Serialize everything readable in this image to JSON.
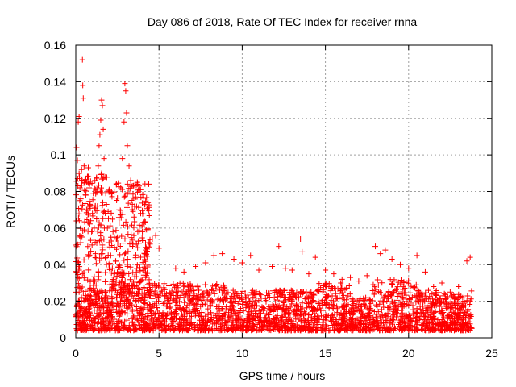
{
  "chart_data": {
    "type": "scatter",
    "title": "Day 086 of 2018, Rate Of TEC Index for receiver rnna",
    "xlabel": "GPS time / hours",
    "ylabel": "ROTI / TECUs",
    "xlim": [
      0,
      25
    ],
    "ylim": [
      0,
      0.16
    ],
    "x_ticks": [
      "0",
      "5",
      "10",
      "15",
      "20",
      "25"
    ],
    "y_ticks": [
      "0",
      "0.02",
      "0.04",
      "0.06",
      "0.08",
      "0.1",
      "0.12",
      "0.14",
      "0.16"
    ],
    "grid": true,
    "marker": "+",
    "series": [
      {
        "name": "ROTI",
        "color": "#ff0000",
        "points": [
          [
            0.05,
            0.104
          ],
          [
            0.1,
            0.097
          ],
          [
            0.15,
            0.118
          ],
          [
            0.2,
            0.121
          ],
          [
            0.22,
            0.088
          ],
          [
            0.25,
            0.082
          ],
          [
            0.3,
            0.076
          ],
          [
            0.35,
            0.092
          ],
          [
            0.4,
            0.152
          ],
          [
            0.42,
            0.138
          ],
          [
            0.45,
            0.131
          ],
          [
            0.5,
            0.094
          ],
          [
            0.55,
            0.086
          ],
          [
            0.6,
            0.078
          ],
          [
            0.65,
            0.07
          ],
          [
            0.7,
            0.088
          ],
          [
            0.75,
            0.093
          ],
          [
            0.8,
            0.082
          ],
          [
            0.85,
            0.073
          ],
          [
            0.9,
            0.064
          ],
          [
            0.95,
            0.058
          ],
          [
            1.0,
            0.068
          ],
          [
            1.05,
            0.079
          ],
          [
            1.1,
            0.072
          ],
          [
            1.15,
            0.086
          ],
          [
            1.2,
            0.081
          ],
          [
            1.25,
            0.065
          ],
          [
            1.3,
            0.072
          ],
          [
            1.35,
            0.094
          ],
          [
            1.4,
            0.105
          ],
          [
            1.45,
            0.111
          ],
          [
            1.5,
            0.119
          ],
          [
            1.55,
            0.13
          ],
          [
            1.6,
            0.127
          ],
          [
            1.65,
            0.114
          ],
          [
            1.7,
            0.098
          ],
          [
            1.75,
            0.088
          ],
          [
            1.8,
            0.079
          ],
          [
            1.9,
            0.06
          ],
          [
            2.0,
            0.052
          ],
          [
            2.1,
            0.045
          ],
          [
            2.2,
            0.038
          ],
          [
            2.3,
            0.035
          ],
          [
            2.4,
            0.042
          ],
          [
            2.5,
            0.055
          ],
          [
            2.6,
            0.07
          ],
          [
            2.7,
            0.082
          ],
          [
            2.8,
            0.098
          ],
          [
            2.9,
            0.118
          ],
          [
            2.95,
            0.139
          ],
          [
            3.0,
            0.135
          ],
          [
            3.05,
            0.123
          ],
          [
            3.1,
            0.105
          ],
          [
            3.2,
            0.094
          ],
          [
            3.3,
            0.086
          ],
          [
            3.4,
            0.073
          ],
          [
            3.5,
            0.066
          ],
          [
            3.6,
            0.077
          ],
          [
            3.7,
            0.085
          ],
          [
            3.8,
            0.083
          ],
          [
            3.9,
            0.068
          ],
          [
            4.0,
            0.058
          ],
          [
            4.2,
            0.048
          ],
          [
            4.4,
            0.052
          ],
          [
            4.6,
            0.054
          ],
          [
            4.8,
            0.056
          ],
          [
            5.0,
            0.049
          ],
          [
            6.0,
            0.038
          ],
          [
            6.5,
            0.036
          ],
          [
            7.2,
            0.039
          ],
          [
            7.8,
            0.041
          ],
          [
            8.3,
            0.045
          ],
          [
            8.8,
            0.046
          ],
          [
            9.5,
            0.043
          ],
          [
            10.0,
            0.041
          ],
          [
            10.5,
            0.045
          ],
          [
            11.0,
            0.037
          ],
          [
            11.8,
            0.039
          ],
          [
            12.2,
            0.05
          ],
          [
            12.6,
            0.038
          ],
          [
            13.0,
            0.037
          ],
          [
            13.5,
            0.054
          ],
          [
            13.6,
            0.047
          ],
          [
            14.0,
            0.035
          ],
          [
            14.4,
            0.044
          ],
          [
            15.0,
            0.037
          ],
          [
            15.5,
            0.035
          ],
          [
            16.0,
            0.032
          ],
          [
            16.5,
            0.033
          ],
          [
            17.0,
            0.031
          ],
          [
            17.5,
            0.034
          ],
          [
            18.0,
            0.05
          ],
          [
            18.3,
            0.046
          ],
          [
            18.6,
            0.048
          ],
          [
            19.0,
            0.043
          ],
          [
            19.5,
            0.04
          ],
          [
            20.0,
            0.038
          ],
          [
            20.5,
            0.045
          ],
          [
            21.0,
            0.036
          ],
          [
            21.5,
            0.028
          ],
          [
            22.0,
            0.03
          ],
          [
            22.5,
            0.025
          ],
          [
            23.0,
            0.028
          ],
          [
            23.5,
            0.042
          ],
          [
            23.7,
            0.044
          ]
        ]
      }
    ]
  }
}
